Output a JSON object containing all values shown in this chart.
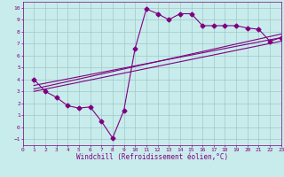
{
  "xlabel": "Windchill (Refroidissement éolien,°C)",
  "bg_color": "#c8ecec",
  "line_color": "#800080",
  "grid_color": "#a0c8c8",
  "xlim": [
    0,
    23
  ],
  "ylim": [
    -1.5,
    10.5
  ],
  "xticks": [
    0,
    1,
    2,
    3,
    4,
    5,
    6,
    7,
    8,
    9,
    10,
    11,
    12,
    13,
    14,
    15,
    16,
    17,
    18,
    19,
    20,
    21,
    22,
    23
  ],
  "yticks": [
    -1,
    0,
    1,
    2,
    3,
    4,
    5,
    6,
    7,
    8,
    9,
    10
  ],
  "line1_x": [
    1,
    2,
    3,
    4,
    5,
    6,
    7,
    8,
    9,
    10,
    11,
    12,
    13,
    14,
    15,
    16,
    17,
    18,
    19,
    20,
    21,
    22,
    23
  ],
  "line1_y": [
    4.0,
    3.0,
    2.5,
    1.8,
    1.6,
    1.7,
    0.5,
    -0.9,
    1.4,
    6.6,
    9.9,
    9.5,
    9.0,
    9.5,
    9.5,
    8.5,
    8.5,
    8.5,
    8.5,
    8.3,
    8.2,
    7.2,
    7.5
  ],
  "line2_x": [
    1,
    23
  ],
  "line2_y": [
    3.5,
    7.5
  ],
  "line3_x": [
    1,
    23
  ],
  "line3_y": [
    3.0,
    7.2
  ],
  "line4_x": [
    1,
    23
  ],
  "line4_y": [
    3.2,
    7.8
  ],
  "markersize": 2.5,
  "linewidth": 0.8,
  "tick_fontsize": 4.5,
  "xlabel_fontsize": 5.5,
  "tick_color": "#800080",
  "axis_color": "#800080"
}
